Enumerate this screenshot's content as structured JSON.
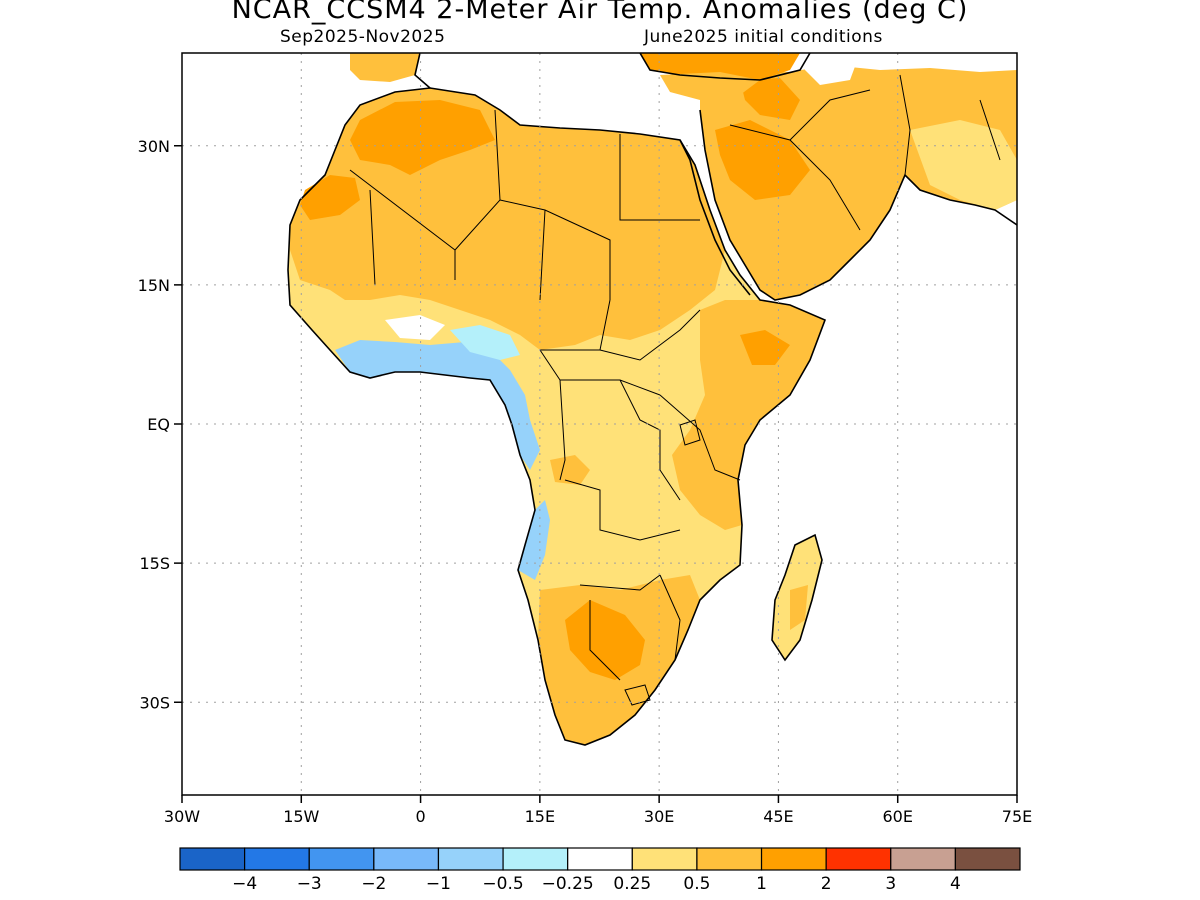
{
  "title": "NCAR_CCSM4 2-Meter Air Temp. Anomalies (deg C)",
  "subtitle_left": "Sep2025-Nov2025",
  "subtitle_right": "June2025 initial conditions",
  "map": {
    "lat_ticks": [
      {
        "lat": 30,
        "label": "30N"
      },
      {
        "lat": 15,
        "label": "15N"
      },
      {
        "lat": 0,
        "label": "EQ"
      },
      {
        "lat": -15,
        "label": "15S"
      },
      {
        "lat": -30,
        "label": "30S"
      }
    ],
    "lon_ticks": [
      {
        "lon": -30,
        "label": "30W"
      },
      {
        "lon": -15,
        "label": "15W"
      },
      {
        "lon": 0,
        "label": "0"
      },
      {
        "lon": 15,
        "label": "15E"
      },
      {
        "lon": 30,
        "label": "30E"
      },
      {
        "lon": 45,
        "label": "45E"
      },
      {
        "lon": 60,
        "label": "60E"
      },
      {
        "lon": 75,
        "label": "75E"
      }
    ],
    "lon_range": [
      -30,
      75
    ],
    "lat_range": [
      -40,
      40
    ],
    "grid": "dotted"
  },
  "colorbar": {
    "colors": [
      "#1a64c8",
      "#2378e6",
      "#4295f0",
      "#78b9fa",
      "#96d2fa",
      "#b4f0fa",
      "#ffffff",
      "#ffe178",
      "#ffc03c",
      "#ffa000",
      "#ff3200",
      "#c8a092",
      "#7a5040"
    ],
    "labels": [
      "-4",
      "-3",
      "-2",
      "-1",
      "-0.5",
      "-0.25",
      "0.25",
      "0.5",
      "1",
      "2",
      "3",
      "4"
    ]
  }
}
